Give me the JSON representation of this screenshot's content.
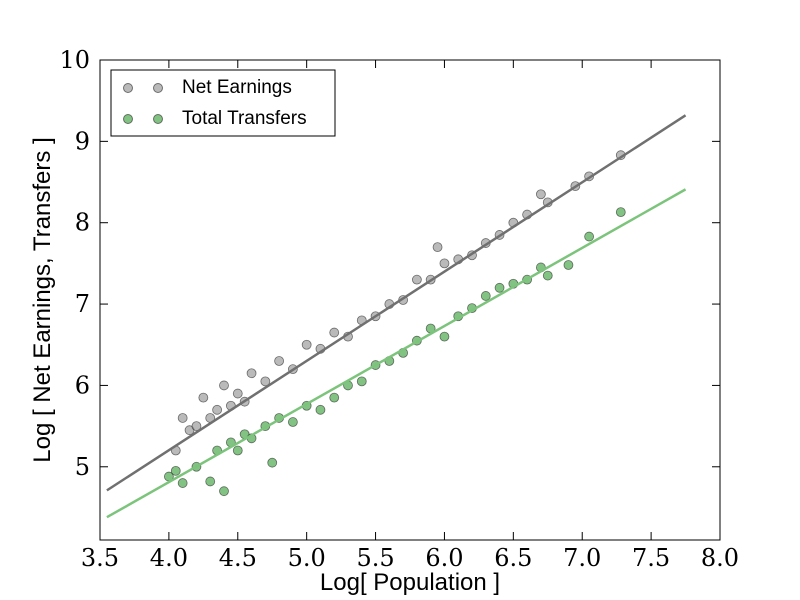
{
  "chart_data": {
    "type": "scatter",
    "xlabel": "Log[ Population ]",
    "ylabel": "Log [ Net Earnings, Transfers ]",
    "xlim": [
      3.5,
      8.0
    ],
    "ylim": [
      4.1,
      10
    ],
    "xticks": [
      {
        "value": 3.5,
        "label": "3.5"
      },
      {
        "value": 4.0,
        "label": "4.0"
      },
      {
        "value": 4.5,
        "label": "4.5"
      },
      {
        "value": 5.0,
        "label": "5.0"
      },
      {
        "value": 5.5,
        "label": "5.5"
      },
      {
        "value": 6.0,
        "label": "6.0"
      },
      {
        "value": 6.5,
        "label": "6.5"
      },
      {
        "value": 7.0,
        "label": "7.0"
      },
      {
        "value": 7.5,
        "label": "7.5"
      },
      {
        "value": 8.0,
        "label": "8.0"
      }
    ],
    "yticks": [
      5,
      6,
      7,
      8,
      9,
      10
    ],
    "legend": "upper left",
    "series": [
      {
        "name": "Net Earnings",
        "color": "#8c8c8c",
        "x": [
          4.05,
          4.1,
          4.15,
          4.2,
          4.25,
          4.3,
          4.35,
          4.4,
          4.45,
          4.5,
          4.55,
          4.6,
          4.7,
          4.8,
          4.9,
          5.0,
          5.1,
          5.2,
          5.3,
          5.4,
          5.5,
          5.6,
          5.7,
          5.8,
          5.9,
          6.0,
          5.95,
          6.1,
          6.2,
          6.3,
          6.4,
          6.5,
          6.6,
          6.7,
          6.75,
          6.95,
          7.05,
          7.28
        ],
        "values": [
          5.2,
          5.6,
          5.45,
          5.5,
          5.85,
          5.6,
          5.7,
          6.0,
          5.75,
          5.9,
          5.8,
          6.15,
          6.05,
          6.3,
          6.2,
          6.5,
          6.45,
          6.65,
          6.6,
          6.8,
          6.85,
          7.0,
          7.05,
          7.3,
          7.3,
          7.5,
          7.7,
          7.55,
          7.6,
          7.75,
          7.85,
          8.0,
          8.1,
          8.35,
          8.25,
          8.45,
          8.57,
          8.83
        ]
      },
      {
        "name": "Total Transfers",
        "color": "#2e9a2e",
        "x": [
          4.0,
          4.05,
          4.1,
          4.2,
          4.3,
          4.35,
          4.4,
          4.45,
          4.5,
          4.55,
          4.6,
          4.7,
          4.75,
          4.8,
          4.9,
          5.0,
          5.1,
          5.2,
          5.3,
          5.4,
          5.5,
          5.6,
          5.7,
          5.8,
          5.9,
          6.0,
          6.1,
          6.2,
          6.3,
          6.4,
          6.5,
          6.6,
          6.7,
          6.75,
          6.9,
          7.05,
          7.28
        ],
        "values": [
          4.88,
          4.95,
          4.8,
          5.0,
          4.82,
          5.2,
          4.7,
          5.3,
          5.2,
          5.4,
          5.35,
          5.5,
          5.05,
          5.6,
          5.55,
          5.75,
          5.7,
          5.85,
          6.0,
          6.05,
          6.25,
          6.3,
          6.4,
          6.55,
          6.7,
          6.6,
          6.85,
          6.95,
          7.1,
          7.2,
          7.25,
          7.3,
          7.45,
          7.35,
          7.48,
          7.83,
          8.13
        ]
      }
    ],
    "fit_lines": [
      {
        "color": "#707070",
        "x": [
          3.55,
          7.75
        ],
        "values": [
          4.71,
          9.32
        ]
      },
      {
        "color": "#7cc47c",
        "x": [
          3.55,
          7.75
        ],
        "values": [
          4.38,
          8.41
        ]
      }
    ]
  }
}
